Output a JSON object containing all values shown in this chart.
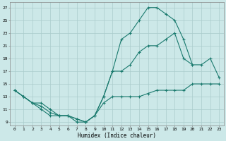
{
  "title": "",
  "xlabel": "Humidex (Indice chaleur)",
  "bg_color": "#cce8e8",
  "grid_color": "#aacccc",
  "line_color": "#1a7a6e",
  "xlim": [
    -0.5,
    23.5
  ],
  "ylim": [
    8.5,
    27.8
  ],
  "xticks": [
    0,
    1,
    2,
    3,
    4,
    5,
    6,
    7,
    8,
    9,
    10,
    11,
    12,
    13,
    14,
    15,
    16,
    17,
    18,
    19,
    20,
    21,
    22,
    23
  ],
  "yticks": [
    9,
    11,
    13,
    15,
    17,
    19,
    21,
    23,
    25,
    27
  ],
  "line_max": {
    "x": [
      0,
      1,
      2,
      3,
      4,
      5,
      6,
      7,
      8,
      9,
      10,
      11,
      12,
      13,
      14,
      15,
      16,
      17,
      18,
      19,
      20
    ],
    "y": [
      14,
      13,
      12,
      11,
      10,
      10,
      10,
      9,
      9,
      10,
      13,
      17,
      22,
      23,
      25,
      27,
      27,
      26,
      25,
      22,
      18
    ]
  },
  "line_min": {
    "x": [
      0,
      1,
      2,
      3,
      4,
      5,
      6,
      7,
      8,
      9,
      10,
      11,
      12,
      13,
      14,
      15,
      16,
      17,
      18,
      19,
      20,
      21,
      22,
      23
    ],
    "y": [
      14,
      13,
      12,
      12,
      11,
      10,
      10,
      9.5,
      9,
      10,
      12,
      13,
      13,
      13,
      13,
      13.5,
      14,
      14,
      14,
      14,
      15,
      15,
      15,
      15
    ]
  },
  "line_mean": {
    "x": [
      0,
      1,
      2,
      3,
      4,
      5,
      6,
      7,
      8,
      9,
      10,
      11,
      12,
      13,
      14,
      15,
      16,
      17,
      18,
      19,
      20,
      21,
      22,
      23
    ],
    "y": [
      14,
      13,
      12,
      11.5,
      10.5,
      10,
      10,
      9.5,
      9,
      10,
      13,
      17,
      17,
      18,
      20,
      21,
      21,
      22,
      23,
      19,
      18,
      18,
      19,
      16
    ]
  }
}
